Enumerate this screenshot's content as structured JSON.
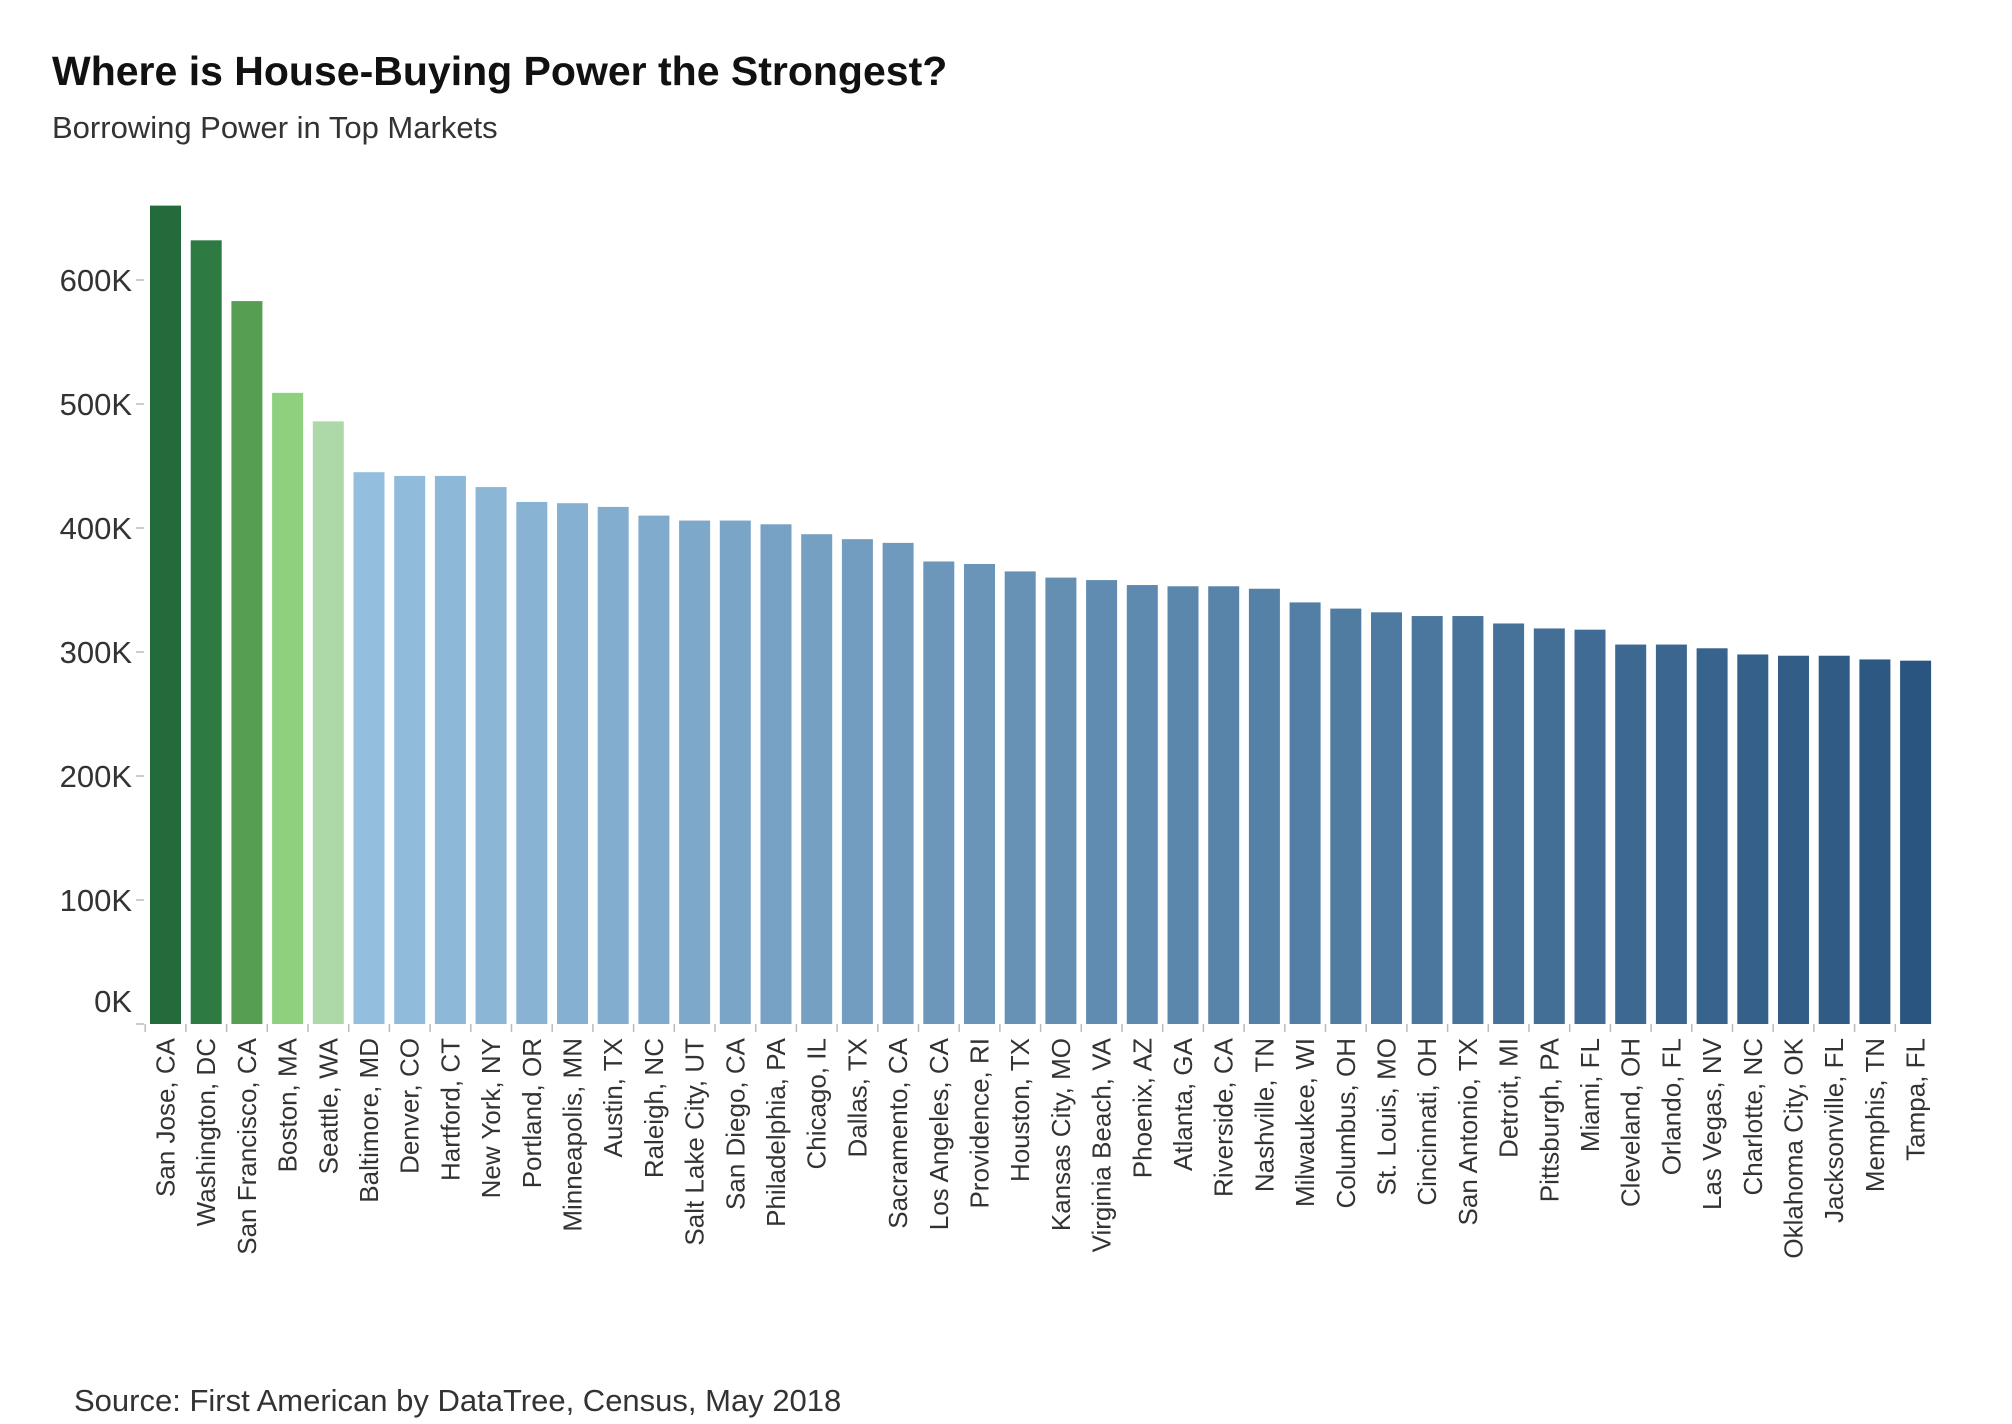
{
  "chart_data": {
    "type": "bar",
    "title": "Where is House-Buying Power the Strongest?",
    "subtitle": "Borrowing Power in Top Markets",
    "source": "Source: First American by DataTree, Census, May 2018",
    "xlabel": "",
    "ylabel": "",
    "ylim": [
      0,
      680000
    ],
    "yticks": [
      0,
      100000,
      200000,
      300000,
      400000,
      500000,
      600000
    ],
    "ytick_labels": [
      "0K",
      "100K",
      "200K",
      "300K",
      "400K",
      "500K",
      "600K"
    ],
    "grid": false,
    "categories": [
      "San Jose, CA",
      "Washington, DC",
      "San Francisco, CA",
      "Boston, MA",
      "Seattle, WA",
      "Baltimore, MD",
      "Denver, CO",
      "Hartford, CT",
      "New York, NY",
      "Portland, OR",
      "Minneapolis, MN",
      "Austin, TX",
      "Raleigh, NC",
      "Salt Lake City, UT",
      "San Diego, CA",
      "Philadelphia, PA",
      "Chicago, IL",
      "Dallas, TX",
      "Sacramento, CA",
      "Los Angeles, CA",
      "Providence, RI",
      "Houston, TX",
      "Kansas City, MO",
      "Virginia Beach, VA",
      "Phoenix, AZ",
      "Atlanta, GA",
      "Riverside, CA",
      "Nashville, TN",
      "Milwaukee, WI",
      "Columbus, OH",
      "St. Louis, MO",
      "Cincinnati, OH",
      "San Antonio, TX",
      "Detroit, MI",
      "Pittsburgh, PA",
      "Miami, FL",
      "Cleveland, OH",
      "Orlando, FL",
      "Las Vegas, NV",
      "Charlotte, NC",
      "Oklahoma City, OK",
      "Jacksonville, FL",
      "Memphis, TN",
      "Tampa, FL"
    ],
    "values": [
      660000,
      632000,
      583000,
      509000,
      486000,
      445000,
      442000,
      442000,
      433000,
      421000,
      420000,
      417000,
      410000,
      406000,
      406000,
      403000,
      395000,
      391000,
      388000,
      373000,
      371000,
      365000,
      360000,
      358000,
      354000,
      353000,
      353000,
      351000,
      340000,
      335000,
      332000,
      329000,
      329000,
      323000,
      319000,
      318000,
      306000,
      306000,
      303000,
      298000,
      297000,
      297000,
      294000,
      293000
    ],
    "colors": {
      "green": [
        "#246b3c",
        "#2d7a43",
        "#559e52",
        "#8fd07f",
        "#add9a8"
      ],
      "blue_start": "#93bedd",
      "blue_end": "#2a5580",
      "axis": "#bbbbbb"
    }
  }
}
